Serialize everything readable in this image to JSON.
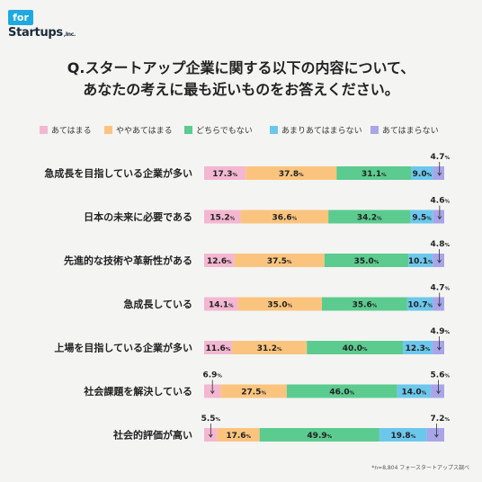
{
  "logo": {
    "box": "for",
    "main": "Startups",
    "suffix": ",Inc."
  },
  "title": {
    "line1": "Q.スタートアップ企業に関する以下の内容について、",
    "line2": "あなたの考えに最も近いものをお答えください。"
  },
  "footnote": "*n=8,804 フォースタートアップス調べ",
  "percent_suffix": "%",
  "chart_data": {
    "type": "bar",
    "orientation": "horizontal",
    "stacked": true,
    "normalized_to_percent": true,
    "legend_position": "top",
    "categories": [
      "急成長を目指している企業が多い",
      "日本の未来に必要である",
      "先進的な技術や革新性がある",
      "急成長している",
      "上場を目指している企業が多い",
      "社会課題を解決している",
      "社会的評価が高い"
    ],
    "series": [
      {
        "name": "あてはまる",
        "color": "#f3b7d1",
        "values": [
          17.3,
          15.2,
          12.6,
          14.1,
          11.6,
          6.9,
          5.5
        ]
      },
      {
        "name": "ややあてはまる",
        "color": "#fbc47e",
        "values": [
          37.8,
          36.6,
          37.5,
          35.0,
          31.2,
          27.5,
          17.6
        ]
      },
      {
        "name": "どちらでもない",
        "color": "#5bcb8f",
        "values": [
          31.1,
          34.2,
          35.0,
          35.6,
          40.0,
          46.0,
          49.9
        ]
      },
      {
        "name": "あまりあてはまらない",
        "color": "#6cc7ec",
        "values": [
          9.0,
          9.5,
          10.1,
          10.7,
          12.3,
          14.0,
          19.8
        ]
      },
      {
        "name": "あてはまらない",
        "color": "#a9a5e9",
        "values": [
          4.7,
          4.6,
          4.8,
          4.7,
          4.9,
          5.6,
          7.2
        ]
      }
    ]
  }
}
